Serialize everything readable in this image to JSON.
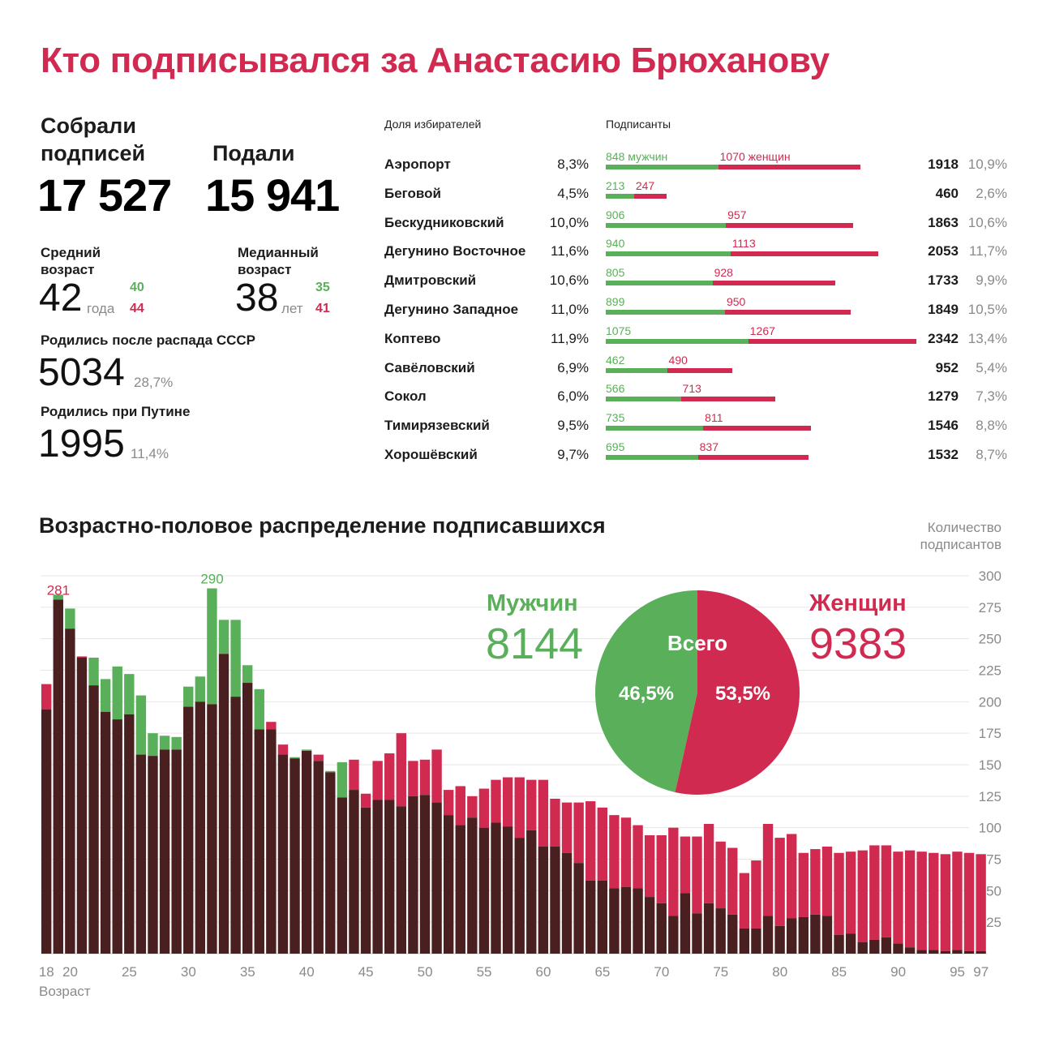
{
  "title": "Кто подписывался за Анастасию Брюханову",
  "stats": {
    "collected_label_1": "Собрали",
    "collected_label_2": "подписей",
    "collected_value": "17 527",
    "submitted_label": "Подали",
    "submitted_value": "15 941",
    "mean_age_label_1": "Средний",
    "mean_age_label_2": "возраст",
    "mean_age_value": "42",
    "mean_age_unit": "года",
    "mean_age_men": "40",
    "mean_age_women": "44",
    "median_age_label_1": "Медианный",
    "median_age_label_2": "возраст",
    "median_age_value": "38",
    "median_age_unit": "лет",
    "median_age_men": "35",
    "median_age_women": "41",
    "post_ussr_label": "Родились после распада СССР",
    "post_ussr_value": "5034",
    "post_ussr_pct": "28,7%",
    "putin_label": "Родились при Путине",
    "putin_value": "1995",
    "putin_pct": "11,4%"
  },
  "district_headers": {
    "share": "Доля избирателей",
    "signers": "Подписанты"
  },
  "colors": {
    "men": "#5aaf5a",
    "women": "#d12a50",
    "overlap": "#4a1f1f"
  },
  "districts": [
    {
      "name": "Аэропорт",
      "share": "8,3%",
      "men": 848,
      "women": 1070,
      "men_label": "848 мужчин",
      "women_label": "1070 женщин",
      "total": "1918",
      "total_pct": "10,9%"
    },
    {
      "name": "Беговой",
      "share": "4,5%",
      "men": 213,
      "women": 247,
      "men_label": "213",
      "women_label": "247",
      "total": "460",
      "total_pct": "2,6%"
    },
    {
      "name": "Бескудниковский",
      "share": "10,0%",
      "men": 906,
      "women": 957,
      "men_label": "906",
      "women_label": "957",
      "total": "1863",
      "total_pct": "10,6%"
    },
    {
      "name": "Дегунино Восточное",
      "share": "11,6%",
      "men": 940,
      "women": 1113,
      "men_label": "940",
      "women_label": "1113",
      "total": "2053",
      "total_pct": "11,7%"
    },
    {
      "name": "Дмитровский",
      "share": "10,6%",
      "men": 805,
      "women": 928,
      "men_label": "805",
      "women_label": "928",
      "total": "1733",
      "total_pct": "9,9%"
    },
    {
      "name": "Дегунино Западное",
      "share": "11,0%",
      "men": 899,
      "women": 950,
      "men_label": "899",
      "women_label": "950",
      "total": "1849",
      "total_pct": "10,5%"
    },
    {
      "name": "Коптево",
      "share": "11,9%",
      "men": 1075,
      "women": 1267,
      "men_label": "1075",
      "women_label": "1267",
      "total": "2342",
      "total_pct": "13,4%"
    },
    {
      "name": "Савёловский",
      "share": "6,9%",
      "men": 462,
      "women": 490,
      "men_label": "462",
      "women_label": "490",
      "total": "952",
      "total_pct": "5,4%"
    },
    {
      "name": "Сокол",
      "share": "6,0%",
      "men": 566,
      "women": 713,
      "men_label": "566",
      "women_label": "713",
      "total": "1279",
      "total_pct": "7,3%"
    },
    {
      "name": "Тимирязевский",
      "share": "9,5%",
      "men": 735,
      "women": 811,
      "men_label": "735",
      "women_label": "811",
      "total": "1546",
      "total_pct": "8,8%"
    },
    {
      "name": "Хорошёвский",
      "share": "9,7%",
      "men": 695,
      "women": 837,
      "men_label": "695",
      "women_label": "837",
      "total": "1532",
      "total_pct": "8,7%"
    }
  ],
  "section_title": "Возрастно-половое распределение подписавшихся",
  "y_axis_title_1": "Количество",
  "y_axis_title_2": "подписантов",
  "x_axis_title": "Возраст",
  "pie": {
    "men_label": "Мужчин",
    "men_value": "8144",
    "women_label": "Женщин",
    "women_value": "9383",
    "center_label": "Всего",
    "men_pct": "46,5%",
    "women_pct": "53,5%",
    "men_fraction": 0.465
  },
  "chart_data": {
    "type": "bar",
    "ylim": [
      0,
      300
    ],
    "yticks": [
      25,
      50,
      75,
      100,
      125,
      150,
      175,
      200,
      225,
      250,
      275,
      300
    ],
    "xticks": [
      18,
      20,
      25,
      30,
      35,
      40,
      45,
      50,
      55,
      60,
      65,
      70,
      75,
      80,
      85,
      90,
      95,
      97
    ],
    "annotations": [
      {
        "age": 19,
        "text": "281",
        "series": "women"
      },
      {
        "age": 32,
        "text": "290",
        "series": "men"
      }
    ],
    "ages": [
      18,
      19,
      20,
      21,
      22,
      23,
      24,
      25,
      26,
      27,
      28,
      29,
      30,
      31,
      32,
      33,
      34,
      35,
      36,
      37,
      38,
      39,
      40,
      41,
      42,
      43,
      44,
      45,
      46,
      47,
      48,
      49,
      50,
      51,
      52,
      53,
      54,
      55,
      56,
      57,
      58,
      59,
      60,
      61,
      62,
      63,
      64,
      65,
      66,
      67,
      68,
      69,
      70,
      71,
      72,
      73,
      74,
      75,
      76,
      77,
      78,
      79,
      80,
      81,
      82,
      83,
      84,
      85,
      86,
      87,
      88,
      89,
      90,
      91,
      92,
      93,
      94,
      95,
      96,
      97
    ],
    "series": [
      {
        "name": "Мужчин",
        "values": [
          194,
          285,
          274,
          235,
          235,
          218,
          228,
          222,
          205,
          175,
          173,
          172,
          212,
          220,
          290,
          265,
          265,
          229,
          210,
          178,
          158,
          156,
          162,
          153,
          145,
          152,
          130,
          116,
          122,
          122,
          117,
          125,
          126,
          120,
          110,
          102,
          108,
          100,
          104,
          101,
          92,
          98,
          85,
          85,
          80,
          72,
          58,
          58,
          52,
          53,
          52,
          45,
          40,
          30,
          48,
          32,
          40,
          36,
          31,
          20,
          20,
          30,
          22,
          28,
          29,
          31,
          30,
          15,
          16,
          9,
          11,
          13,
          8,
          5,
          3,
          3,
          2,
          3,
          2,
          2
        ]
      },
      {
        "name": "Женщин",
        "values": [
          214,
          281,
          258,
          236,
          213,
          192,
          186,
          190,
          158,
          157,
          162,
          162,
          196,
          200,
          198,
          238,
          204,
          215,
          178,
          184,
          166,
          155,
          161,
          158,
          144,
          124,
          154,
          127,
          153,
          159,
          175,
          153,
          154,
          162,
          130,
          133,
          125,
          131,
          138,
          140,
          140,
          138,
          138,
          123,
          120,
          120,
          121,
          116,
          110,
          108,
          102,
          94,
          94,
          100,
          93,
          93,
          103,
          89,
          84,
          64,
          74,
          103,
          92,
          95,
          80,
          83,
          85,
          80,
          81,
          82,
          86,
          86,
          81,
          82,
          81,
          80,
          79,
          81,
          80,
          79
        ]
      }
    ]
  }
}
